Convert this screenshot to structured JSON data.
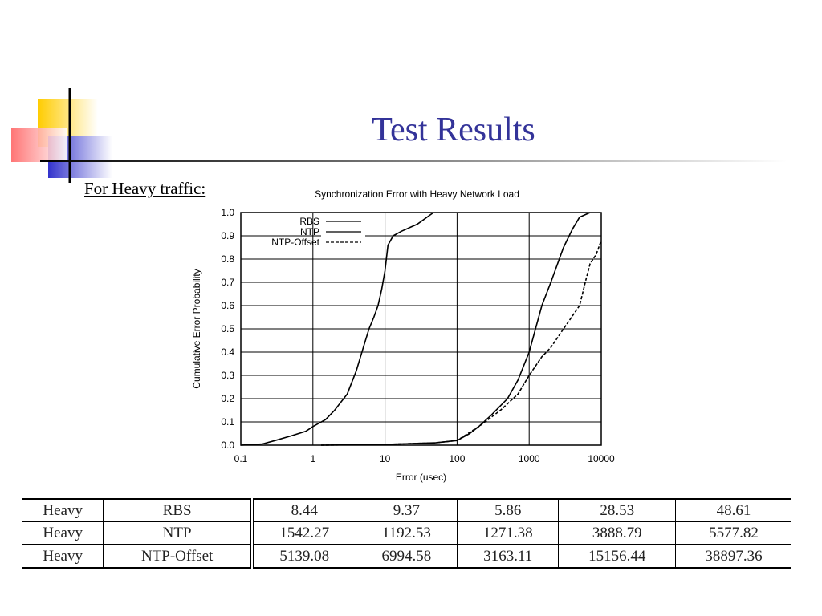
{
  "title": "Test Results",
  "subtitle": "For Heavy traffic:",
  "chart_data": {
    "type": "line",
    "title": "Synchronization Error with Heavy Network Load",
    "x_label": "Error (usec)",
    "y_label": "Cumulative Error Probability",
    "x_scale": "log",
    "xlim": [
      0.1,
      10000
    ],
    "xticks": [
      0.1,
      1,
      10,
      100,
      1000,
      10000
    ],
    "ylim": [
      0,
      1
    ],
    "yticks": [
      {
        "value": 0,
        "label": "0.0"
      },
      0.1,
      0.2,
      0.3,
      0.4,
      0.5,
      0.6,
      0.7,
      0.8,
      0.9,
      {
        "value": 1,
        "label": "1.0"
      }
    ],
    "grid": true,
    "legend": "top-left",
    "series": [
      {
        "name": "RBS",
        "color": "#000000",
        "dashed": false,
        "x": [
          0.1,
          0.2,
          0.3,
          0.5,
          0.8,
          1,
          1.5,
          2,
          3,
          4,
          5,
          6,
          7,
          8,
          9,
          10,
          11,
          13,
          17,
          28,
          47
        ],
        "values": [
          0,
          0.005,
          0.02,
          0.04,
          0.06,
          0.08,
          0.11,
          0.15,
          0.22,
          0.32,
          0.42,
          0.5,
          0.55,
          0.6,
          0.67,
          0.75,
          0.86,
          0.9,
          0.92,
          0.95,
          1.0
        ]
      },
      {
        "name": "NTP",
        "color": "#000000",
        "dashed": false,
        "x": [
          1.3,
          10,
          50,
          100,
          150,
          200,
          300,
          500,
          700,
          1000,
          1500,
          2000,
          3000,
          4000,
          5000,
          7000
        ],
        "values": [
          0,
          0.003,
          0.01,
          0.02,
          0.05,
          0.08,
          0.13,
          0.2,
          0.28,
          0.4,
          0.6,
          0.7,
          0.85,
          0.93,
          0.98,
          1.0
        ]
      },
      {
        "name": "NTP-Offset",
        "color": "#000000",
        "dashed": true,
        "x": [
          1.3,
          10,
          50,
          100,
          200,
          400,
          700,
          1000,
          1500,
          2000,
          3000,
          5000,
          6000,
          7000,
          8500,
          10000
        ],
        "values": [
          0,
          0.003,
          0.01,
          0.02,
          0.08,
          0.15,
          0.22,
          0.3,
          0.38,
          0.42,
          0.5,
          0.6,
          0.7,
          0.78,
          0.82,
          0.88
        ]
      }
    ]
  },
  "table": {
    "rows": [
      [
        "Heavy",
        "RBS",
        "8.44",
        "9.37",
        "5.86",
        "28.53",
        "48.61"
      ],
      [
        "Heavy",
        "NTP",
        "1542.27",
        "1192.53",
        "1271.38",
        "3888.79",
        "5577.82"
      ],
      [
        "Heavy",
        "NTP-Offset",
        "5139.08",
        "6994.58",
        "3163.11",
        "15156.44",
        "38897.36"
      ]
    ]
  }
}
